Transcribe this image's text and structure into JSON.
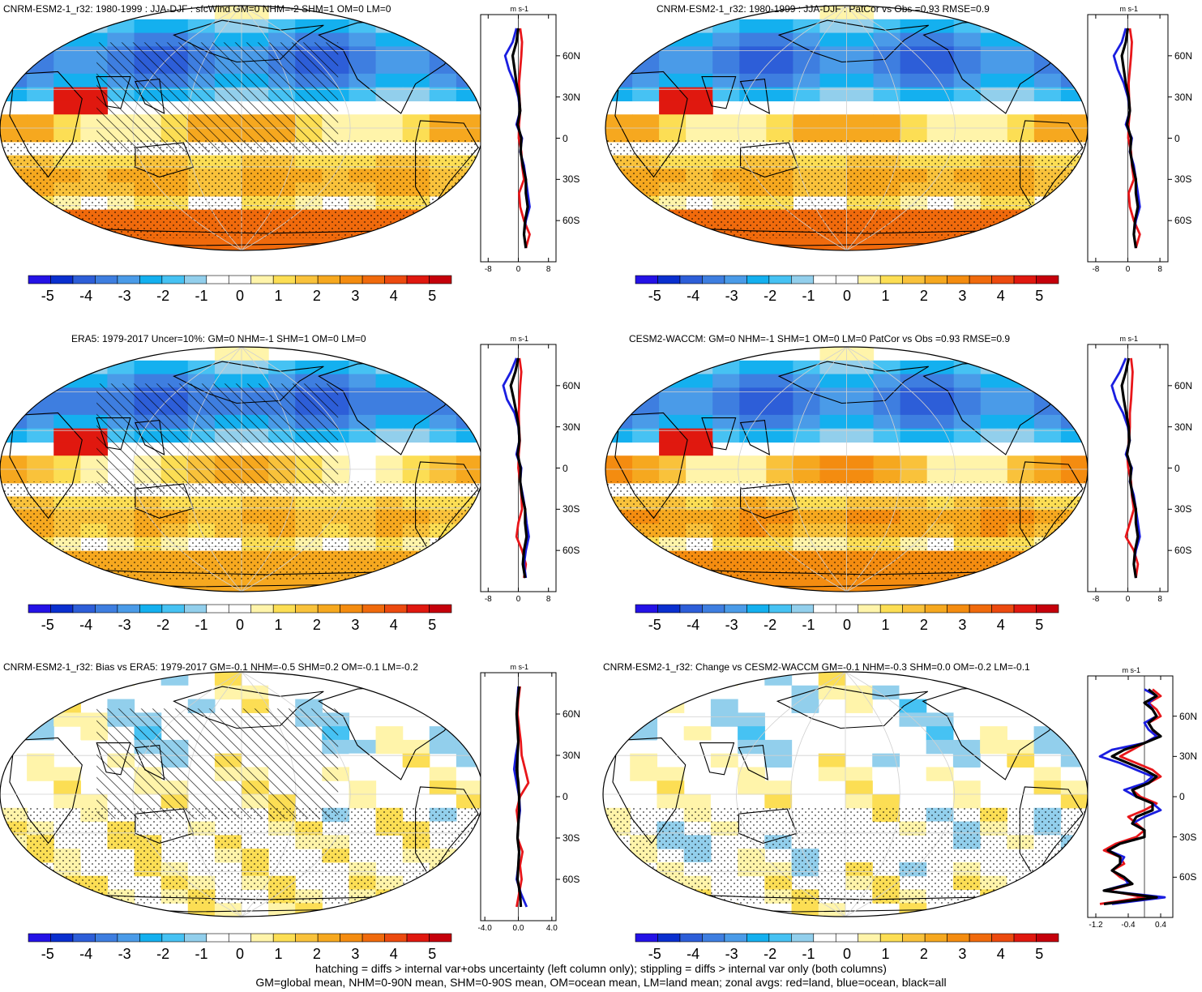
{
  "chart_data": [
    {
      "type": "heatmap",
      "title": "CNRM-ESM2-1_r32: 1980-1999 : JJA-DJF : sfcWind GM=0 NHM=-2 SHM=1 OM=0 LM=0",
      "colorbar_labels": [
        "-5",
        "-4",
        "-3",
        "-2",
        "-1",
        "0",
        "1",
        "2",
        "3",
        "4",
        "5"
      ],
      "hatching": true,
      "stippling": true,
      "pattern": {
        "nh": -3.5,
        "eq": 3.0,
        "sh": 2.2,
        "ant": 3.5,
        "indian": 4.5,
        "tropics_bias": 2.5
      },
      "zonal": {
        "units": "m s-1",
        "xticks": [
          "-8",
          "0",
          "8"
        ],
        "xrange": [
          -10,
          10
        ],
        "yticks": [
          "60N",
          "30N",
          "0",
          "30S",
          "60S"
        ],
        "lat": [
          80,
          70,
          60,
          50,
          40,
          30,
          20,
          10,
          0,
          -10,
          -20,
          -30,
          -40,
          -50,
          -60,
          -70,
          -80
        ],
        "land": [
          0.5,
          1.0,
          0.8,
          0.5,
          0.2,
          0.3,
          0.5,
          0.2,
          0.1,
          0.8,
          1.0,
          1.5,
          0.2,
          0.5,
          1.5,
          3.0,
          2.0
        ],
        "ocean": [
          -0.5,
          -1.5,
          -3.5,
          -2.5,
          -1.0,
          0.0,
          0.5,
          -0.5,
          1.0,
          0.5,
          1.5,
          2.0,
          2.5,
          3.0,
          2.0,
          1.5,
          2.0
        ],
        "all": [
          0.0,
          -0.5,
          -1.5,
          -1.0,
          -0.5,
          0.2,
          0.5,
          -0.2,
          0.8,
          0.6,
          1.2,
          2.0,
          2.0,
          2.5,
          1.8,
          1.5,
          2.0
        ]
      }
    },
    {
      "type": "heatmap",
      "title": "CNRM-ESM2-1_r32: 1980-1999 : JJA-DJF : PatCor vs Obs =0.93 RMSE=0.9",
      "colorbar_labels": [
        "-5",
        "-4",
        "-3",
        "-2",
        "-1",
        "0",
        "1",
        "2",
        "3",
        "4",
        "5"
      ],
      "hatching": false,
      "stippling": true,
      "pattern": {
        "nh": -3.5,
        "eq": 3.0,
        "sh": 2.2,
        "ant": 3.5,
        "indian": 4.5,
        "tropics_bias": 2.5
      },
      "zonal": {
        "units": "m s-1",
        "xticks": [
          "-8",
          "0",
          "8"
        ],
        "xrange": [
          -10,
          10
        ],
        "yticks": [
          "60N",
          "30N",
          "0",
          "30S",
          "60S"
        ],
        "lat": [
          80,
          70,
          60,
          50,
          40,
          30,
          20,
          10,
          0,
          -10,
          -20,
          -30,
          -40,
          -50,
          -60,
          -70,
          -80
        ],
        "land": [
          0.5,
          1.0,
          0.8,
          0.5,
          0.2,
          0.3,
          0.5,
          0.2,
          0.1,
          0.8,
          1.0,
          1.5,
          0.2,
          0.5,
          1.5,
          3.0,
          2.0
        ],
        "ocean": [
          -0.5,
          -1.5,
          -3.5,
          -2.5,
          -1.0,
          0.0,
          0.5,
          -0.5,
          1.0,
          0.5,
          1.5,
          2.0,
          2.5,
          3.0,
          2.0,
          1.5,
          2.0
        ],
        "all": [
          0.0,
          -0.5,
          -1.5,
          -1.0,
          -0.5,
          0.2,
          0.5,
          -0.2,
          0.8,
          0.6,
          1.2,
          2.0,
          2.0,
          2.5,
          1.8,
          1.5,
          2.0
        ]
      }
    },
    {
      "type": "heatmap",
      "title": "ERA5: 1979-2017 Uncer=10%: GM=0 NHM=-1 SHM=1 OM=0 LM=0",
      "colorbar_labels": [
        "-5",
        "-4",
        "-3",
        "-2",
        "-1",
        "0",
        "1",
        "2",
        "3",
        "4",
        "5"
      ],
      "hatching": true,
      "stippling": true,
      "pattern": {
        "nh": -3.8,
        "eq": 2.8,
        "sh": 2.0,
        "ant": 2.5,
        "indian": 4.8,
        "tropics_bias": 2.0
      },
      "zonal": {
        "units": "m s-1",
        "xticks": [
          "-8",
          "0",
          "8"
        ],
        "xrange": [
          -10,
          10
        ],
        "yticks": [
          "60N",
          "30N",
          "0",
          "30S",
          "60S"
        ],
        "lat": [
          80,
          70,
          60,
          50,
          40,
          30,
          20,
          10,
          0,
          -10,
          -20,
          -30,
          -40,
          -50,
          -60,
          -70,
          -80
        ],
        "land": [
          0.3,
          0.8,
          0.5,
          0.3,
          0.1,
          0.2,
          0.4,
          0.1,
          0.0,
          0.5,
          0.8,
          1.0,
          0.0,
          -0.5,
          1.0,
          2.0,
          1.5
        ],
        "ocean": [
          -0.5,
          -2.0,
          -4.0,
          -3.0,
          -1.0,
          0.0,
          0.3,
          -0.5,
          0.8,
          0.5,
          1.2,
          1.8,
          2.2,
          2.8,
          2.0,
          1.5,
          2.0
        ],
        "all": [
          0.0,
          -0.8,
          -2.0,
          -1.2,
          -0.5,
          0.1,
          0.3,
          -0.2,
          0.6,
          0.5,
          1.0,
          1.8,
          1.8,
          2.2,
          1.5,
          1.2,
          1.8
        ]
      }
    },
    {
      "type": "heatmap",
      "title": "CESM2-WACCM: GM=0 NHM=-1 SHM=1 OM=0 LM=0 PatCor vs Obs =0.93 RMSE=0.9",
      "colorbar_labels": [
        "-5",
        "-4",
        "-3",
        "-2",
        "-1",
        "0",
        "1",
        "2",
        "3",
        "4",
        "5"
      ],
      "hatching": false,
      "stippling": true,
      "pattern": {
        "nh": -3.6,
        "eq": 3.2,
        "sh": 2.6,
        "ant": 3.0,
        "indian": 4.5,
        "tropics_bias": 2.8
      },
      "zonal": {
        "units": "m s-1",
        "xticks": [
          "-8",
          "0",
          "8"
        ],
        "xrange": [
          -10,
          10
        ],
        "yticks": [
          "60N",
          "30N",
          "0",
          "30S",
          "60S"
        ],
        "lat": [
          80,
          70,
          60,
          50,
          40,
          30,
          20,
          10,
          0,
          -10,
          -20,
          -30,
          -40,
          -50,
          -60,
          -70,
          -80
        ],
        "land": [
          0.8,
          1.2,
          1.0,
          0.8,
          0.5,
          0.5,
          0.3,
          -0.2,
          0.1,
          0.8,
          1.0,
          1.5,
          0.5,
          -0.5,
          1.5,
          2.5,
          2.0
        ],
        "ocean": [
          -0.5,
          -2.0,
          -4.0,
          -3.0,
          -1.2,
          0.0,
          0.5,
          -0.5,
          1.0,
          0.5,
          1.5,
          2.0,
          2.5,
          3.0,
          2.0,
          1.5,
          2.0
        ],
        "all": [
          0.2,
          -0.5,
          -1.5,
          -1.0,
          -0.4,
          0.2,
          0.4,
          -0.2,
          0.8,
          0.6,
          1.2,
          2.0,
          2.0,
          2.5,
          1.8,
          1.5,
          2.0
        ]
      }
    },
    {
      "type": "heatmap",
      "title": "CNRM-ESM2-1_r32: Bias vs ERA5: 1979-2017 GM=-0.1 NHM=-0.5 SHM=0.2 OM=-0.1 LM=-0.2",
      "colorbar_labels": [
        "-5",
        "-4",
        "-3",
        "-2",
        "-1",
        "0",
        "1",
        "2",
        "3",
        "4",
        "5"
      ],
      "hatching": true,
      "stippling": true,
      "pattern": {
        "nh": -0.5,
        "eq": 0.9,
        "sh": 0.6,
        "ant": 0.8,
        "indian": 0.6,
        "tropics_bias": 0.8,
        "bias": true
      },
      "zonal": {
        "units": "m s-1",
        "xticks": [
          "-4.0",
          "0.0",
          "4.0"
        ],
        "xrange": [
          -4.5,
          4.5
        ],
        "yticks": [
          "60N",
          "30N",
          "0",
          "30S",
          "60S"
        ],
        "lat": [
          80,
          70,
          60,
          50,
          40,
          30,
          20,
          10,
          0,
          -10,
          -20,
          -30,
          -40,
          -50,
          -60,
          -70,
          -80
        ],
        "land": [
          0.2,
          0.0,
          -0.1,
          0.1,
          0.3,
          0.4,
          0.8,
          1.2,
          0.2,
          -0.2,
          0.0,
          -0.1,
          0.5,
          0.2,
          0.4,
          0.1,
          -0.2
        ],
        "ocean": [
          0.0,
          -0.1,
          -0.2,
          -0.1,
          0.0,
          -0.3,
          -0.5,
          -0.2,
          0.1,
          0.2,
          0.0,
          -0.1,
          0.1,
          0.0,
          -0.2,
          0.3,
          1.0
        ],
        "all": [
          0.1,
          -0.1,
          -0.2,
          -0.1,
          0.0,
          -0.1,
          -0.2,
          0.0,
          0.1,
          0.1,
          0.0,
          -0.1,
          0.1,
          0.0,
          -0.1,
          0.2,
          0.3
        ]
      }
    },
    {
      "type": "heatmap",
      "title": "CNRM-ESM2-1_r32: Change vs CESM2-WACCM GM=-0.1 NHM=-0.3 SHM=0.0 OM=-0.2 LM=-0.1",
      "colorbar_labels": [
        "-5",
        "-4",
        "-3",
        "-2",
        "-1",
        "0",
        "1",
        "2",
        "3",
        "4",
        "5"
      ],
      "hatching": false,
      "stippling": true,
      "pattern": {
        "nh": -0.6,
        "eq": 0.6,
        "sh": -0.4,
        "ant": 0.4,
        "indian": 0.5,
        "tropics_bias": 0.7,
        "bias": true
      },
      "zonal": {
        "units": "m s-1",
        "xticks": [
          "-1.2",
          "-0.4",
          "0.4"
        ],
        "xrange": [
          -1.4,
          0.7
        ],
        "yticks": [
          "60N",
          "30N",
          "0",
          "30S",
          "60S"
        ],
        "lat": [
          80,
          75,
          70,
          65,
          60,
          55,
          50,
          45,
          40,
          35,
          30,
          25,
          20,
          15,
          10,
          5,
          0,
          -5,
          -10,
          -15,
          -20,
          -25,
          -30,
          -35,
          -40,
          -45,
          -50,
          -55,
          -60,
          -65,
          -70,
          -75,
          -80
        ],
        "land": [
          0.2,
          0.4,
          0.1,
          0.3,
          0.4,
          0.1,
          0.2,
          0.3,
          0.0,
          -0.3,
          -0.6,
          -0.2,
          0.2,
          0.4,
          0.1,
          -0.3,
          -0.1,
          0.3,
          0.0,
          -0.4,
          -0.2,
          0.0,
          -0.2,
          -0.7,
          -1.0,
          -0.6,
          -0.5,
          -0.8,
          -0.6,
          -0.3,
          -0.9,
          0.0,
          -1.1
        ],
        "ocean": [
          0.0,
          0.3,
          0.1,
          0.2,
          0.3,
          0.0,
          0.1,
          0.3,
          0.0,
          -0.8,
          -1.1,
          -0.6,
          -0.2,
          0.2,
          0.0,
          -0.5,
          -0.2,
          0.2,
          0.4,
          0.0,
          -0.3,
          0.0,
          0.0,
          -0.6,
          -0.9,
          -0.5,
          -0.6,
          -0.8,
          -0.5,
          -0.4,
          -1.0,
          0.5,
          -0.8
        ],
        "all": [
          0.1,
          0.3,
          0.0,
          0.2,
          0.3,
          0.1,
          0.2,
          0.4,
          0.0,
          -0.5,
          -0.8,
          -0.4,
          0.0,
          0.3,
          0.1,
          -0.3,
          -0.2,
          0.2,
          0.2,
          -0.2,
          -0.3,
          0.0,
          0.0,
          -0.6,
          -0.9,
          -0.6,
          -0.6,
          -0.8,
          -0.5,
          -0.3,
          -1.0,
          0.3,
          -1.0
        ]
      }
    }
  ],
  "footer": {
    "line1": "hatching = diffs > internal var+obs uncertainty (left column only); stippling = diffs > internal var only (both columns)",
    "line2": "GM=global mean, NHM=0-90N mean, SHM=0-90S mean, OM=ocean mean, LM=land mean; zonal avgs: red=land, blue=ocean, black=all"
  },
  "colors": {
    "colorbar": [
      "#2412e6",
      "#0a2fcf",
      "#2d5ed8",
      "#3e7ee0",
      "#4a9be8",
      "#14b0ef",
      "#46c2f3",
      "#92cfec",
      "#ffffff",
      "#ffffff",
      "#fff4aa",
      "#fcde54",
      "#f9c23b",
      "#f6a81f",
      "#f48c10",
      "#f06a0c",
      "#ec4a0f",
      "#e0180f",
      "#c5000b"
    ],
    "land": "#e8161a",
    "ocean": "#1a1ee0",
    "all": "#000000"
  }
}
